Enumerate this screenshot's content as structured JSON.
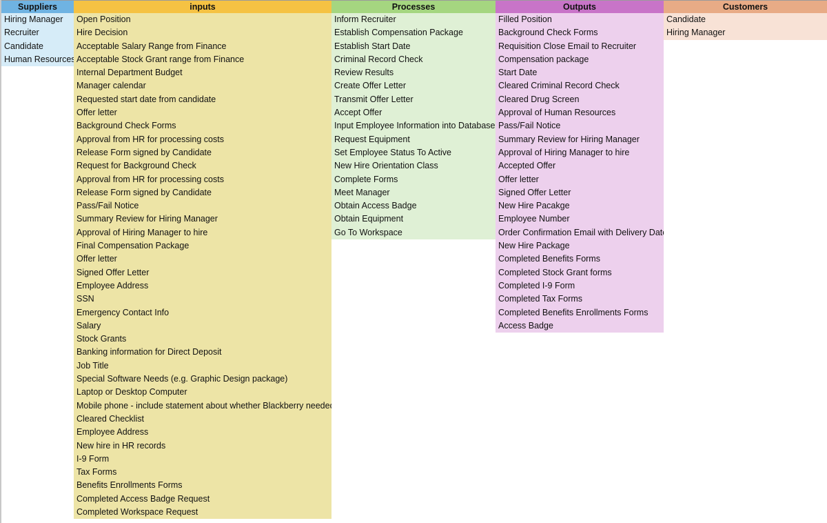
{
  "columns": [
    {
      "key": "suppliers",
      "title": "Suppliers",
      "header_color": "#6fb3e2",
      "body_color": "#d6ecf8",
      "items": [
        "Hiring Manager",
        "Recruiter",
        "Candidate",
        "Human Resources"
      ]
    },
    {
      "key": "inputs",
      "title": "inputs",
      "header_color": "#f5c243",
      "body_color": "#ede4a6",
      "items": [
        "Open Position",
        "Hire Decision",
        "Acceptable Salary Range from Finance",
        "Acceptable Stock Grant range from Finance",
        "Internal Department Budget",
        "Manager calendar",
        "Requested start date from candidate",
        "Offer letter",
        "Background Check Forms",
        "Approval from HR for processing costs",
        "Release Form signed by Candidate",
        "Request for Background Check",
        "Approval from HR for processing costs",
        "Release Form signed by Candidate",
        "Pass/Fail Notice",
        "Summary Review for Hiring Manager",
        "Approval of Hiring Manager to hire",
        "Final Compensation Package",
        "Offer letter",
        "Signed Offer Letter",
        "Employee Address",
        "SSN",
        "Emergency Contact Info",
        "Salary",
        "Stock Grants",
        "Banking information for Direct Deposit",
        "Job Title",
        "Special Software Needs (e.g. Graphic Design package)",
        "Laptop or Desktop Computer",
        "Mobile phone - include statement about whether Blackberry needed",
        "Cleared Checklist",
        "Employee Address",
        "New hire in HR records",
        "I-9 Form",
        "Tax Forms",
        "Benefits Enrollments Forms",
        "Completed Access Badge Request",
        "Completed Workspace Request"
      ]
    },
    {
      "key": "processes",
      "title": "Processes",
      "header_color": "#a5d680",
      "body_color": "#dff0d5",
      "items": [
        "Inform Recruiter",
        "Establish Compensation Package",
        "Establish Start Date",
        "Criminal Record Check",
        "Review Results",
        "Create Offer Letter",
        "Transmit Offer Letter",
        "Accept Offer",
        "Input Employee Information into Database",
        "Request Equipment",
        "Set Employee Status To Active",
        "New Hire Orientation Class",
        "Complete Forms",
        "Meet Manager",
        "Obtain Access Badge",
        "Obtain Equipment",
        "Go To Workspace"
      ]
    },
    {
      "key": "outputs",
      "title": "Outputs",
      "header_color": "#c874c8",
      "body_color": "#edd0ed",
      "items": [
        "Filled Position",
        "Background Check Forms",
        "Requisition Close Email to Recruiter",
        "Compensation package",
        "Start Date",
        "Cleared Criminal Record Check",
        "Cleared Drug Screen",
        "Approval of Human Resources",
        "Pass/Fail Notice",
        "Summary Review for Hiring Manager",
        "Approval of Hiring Manager to hire",
        "Accepted Offer",
        "Offer letter",
        "Signed Offer Letter",
        "New Hire Pacakge",
        "Employee Number",
        "Order Confirmation Email with Delivery Date",
        "New Hire Package",
        "Completed Benefits Forms",
        "Completed Stock Grant forms",
        "Completed I-9 Form",
        "Completed Tax Forms",
        "Completed Benefits Enrollments Forms",
        "Access Badge"
      ]
    },
    {
      "key": "customers",
      "title": "Customers",
      "header_color": "#e8ab86",
      "body_color": "#f8e2d6",
      "items": [
        "Candidate",
        "Hiring Manager"
      ]
    }
  ]
}
